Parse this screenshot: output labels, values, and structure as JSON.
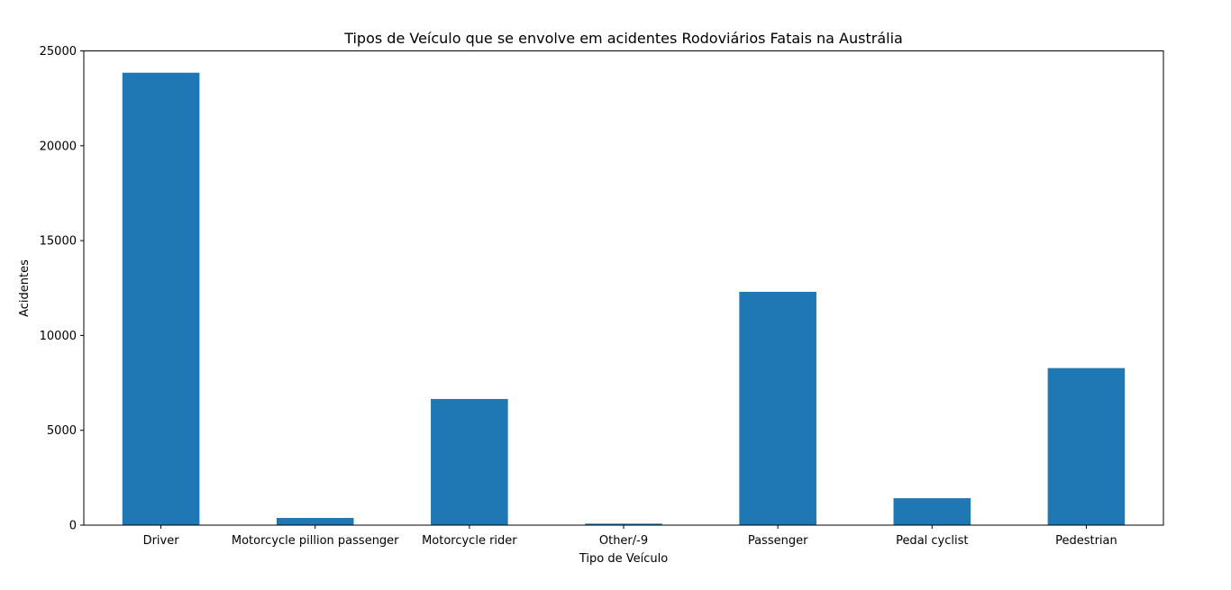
{
  "chart_data": {
    "type": "bar",
    "title": "Tipos de Veículo que se envolve em acidentes Rodoviários Fatais na Austrália",
    "xlabel": "Tipo de Veículo",
    "ylabel": "Acidentes",
    "categories": [
      "Driver",
      "Motorcycle pillion passenger",
      "Motorcycle rider",
      "Other/-9",
      "Passenger",
      "Pedal cyclist",
      "Pedestrian"
    ],
    "values": [
      23850,
      380,
      6650,
      80,
      12300,
      1420,
      8280
    ],
    "ylim": [
      0,
      25000
    ],
    "yticks": [
      0,
      5000,
      10000,
      15000,
      20000,
      25000
    ],
    "ytick_labels": [
      "0",
      "5000",
      "10000",
      "15000",
      "20000",
      "25000"
    ],
    "grid": false,
    "bar_color": "#1f77b4"
  }
}
